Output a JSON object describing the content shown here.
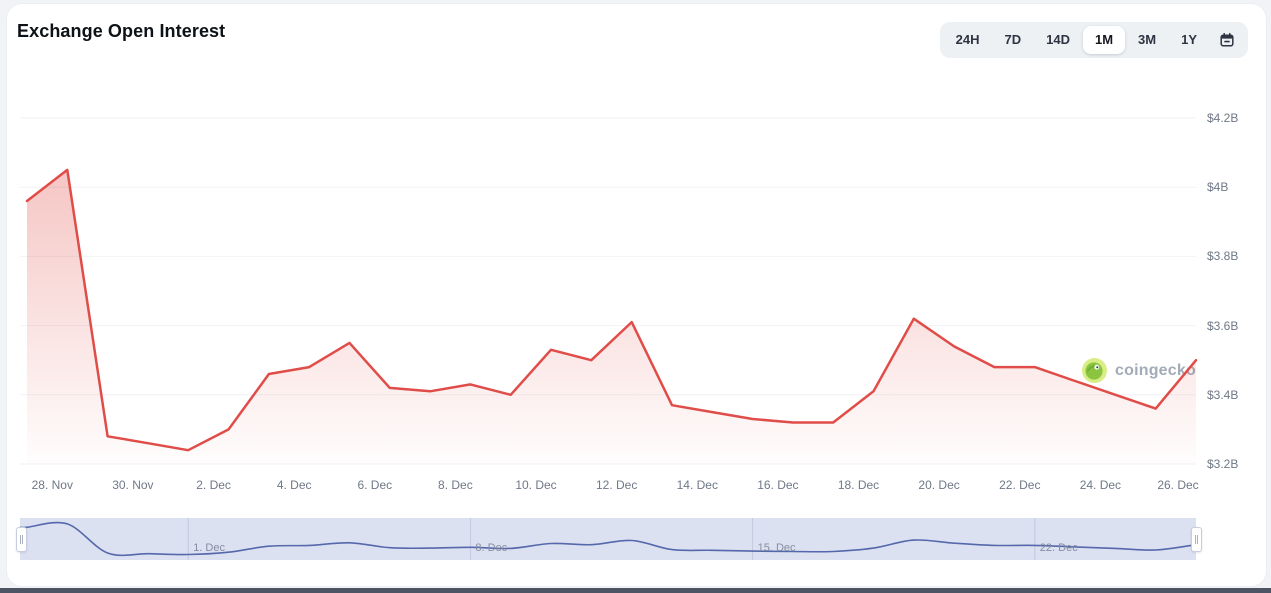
{
  "header": {
    "title": "Exchange Open Interest"
  },
  "range_buttons": {
    "options": [
      "24H",
      "7D",
      "14D",
      "1M",
      "3M",
      "1Y"
    ],
    "active": "1M"
  },
  "watermark": {
    "icon": "gecko-icon",
    "text": "coingecko"
  },
  "colors": {
    "line": "#e04d48",
    "area_top": "rgba(224,77,72,0.32)",
    "area_bottom": "rgba(224,77,72,0.01)",
    "grid": "#f1f2f5",
    "axis_text": "#6f7887",
    "nav_band": "#dce1f1",
    "nav_grid": "#c3c9de",
    "nav_line": "#5568ac",
    "active_pill": "#ffffff",
    "button_group_bg": "#eef1f4"
  },
  "navigator": {
    "labels": [
      "1. Dec",
      "8. Dec",
      "15. Dec",
      "22. Dec"
    ],
    "label_indices": [
      4,
      11,
      18,
      25
    ]
  },
  "chart_data": {
    "type": "area",
    "title": "Exchange Open Interest",
    "x": [
      "27. Nov",
      "28. Nov",
      "29. Nov",
      "30. Nov",
      "1. Dec",
      "2. Dec",
      "3. Dec",
      "4. Dec",
      "5. Dec",
      "6. Dec",
      "7. Dec",
      "8. Dec",
      "9. Dec",
      "10. Dec",
      "11. Dec",
      "12. Dec",
      "13. Dec",
      "14. Dec",
      "15. Dec",
      "16. Dec",
      "17. Dec",
      "18. Dec",
      "19. Dec",
      "20. Dec",
      "21. Dec",
      "22. Dec",
      "23. Dec",
      "24. Dec",
      "25. Dec",
      "26. Dec"
    ],
    "series": [
      {
        "name": "Exchange Open Interest",
        "values": [
          3.96,
          4.05,
          3.28,
          3.26,
          3.24,
          3.3,
          3.46,
          3.48,
          3.55,
          3.42,
          3.41,
          3.43,
          3.4,
          3.53,
          3.5,
          3.61,
          3.37,
          3.35,
          3.33,
          3.32,
          3.32,
          3.41,
          3.62,
          3.54,
          3.48,
          3.48,
          3.44,
          3.4,
          3.36,
          3.5
        ]
      }
    ],
    "unit": "USD billions",
    "y_ticks": [
      "$4.2B",
      "$4B",
      "$3.8B",
      "$3.6B",
      "$3.4B",
      "$3.2B"
    ],
    "y_tick_values": [
      4.2,
      4.0,
      3.8,
      3.6,
      3.4,
      3.2
    ],
    "x_tick_labels": [
      "28. Nov",
      "30. Nov",
      "2. Dec",
      "4. Dec",
      "6. Dec",
      "8. Dec",
      "10. Dec",
      "12. Dec",
      "14. Dec",
      "16. Dec",
      "18. Dec",
      "20. Dec",
      "22. Dec",
      "24. Dec",
      "26. Dec"
    ],
    "ylim": [
      3.2,
      4.2
    ],
    "xlabel": "",
    "ylabel": "",
    "grid": "horizontal",
    "legend": "none",
    "y_axis_side": "right"
  }
}
